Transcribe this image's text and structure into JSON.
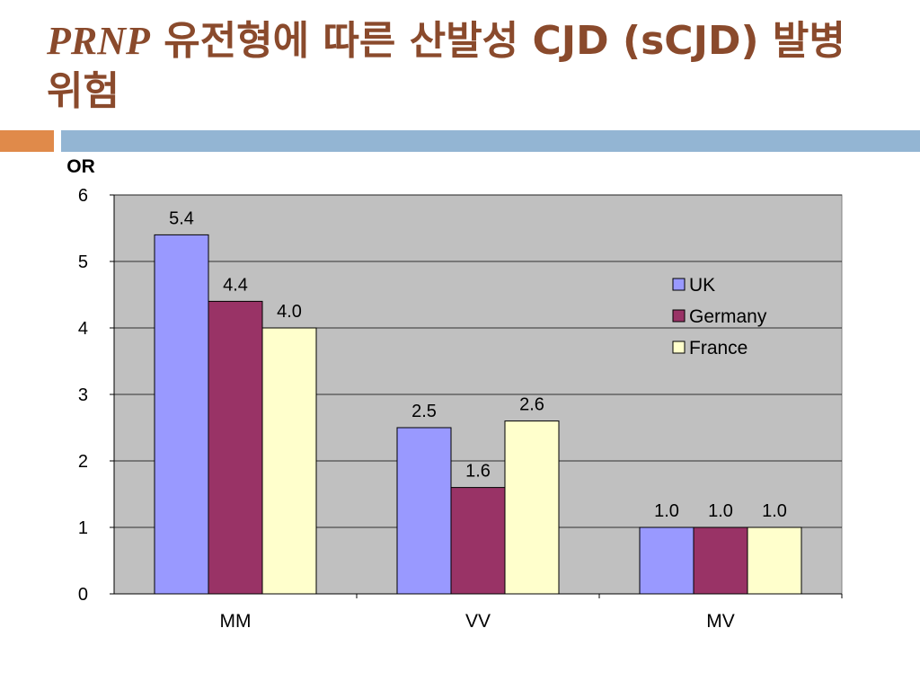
{
  "slide": {
    "title_italic": "PRNP",
    "title_rest": " 유전형에 따른 산발성 CJD (sCJD) 발병 위험"
  },
  "colors": {
    "accent_orange": "#e08a4a",
    "accent_blue": "#93b5d3",
    "plot_bg": "#c0c0c0"
  },
  "chart_data": {
    "type": "bar",
    "ylabel": "OR",
    "xlabel": "",
    "categories": [
      "MM",
      "VV",
      "MV"
    ],
    "series": [
      {
        "name": "UK",
        "values": [
          5.4,
          2.5,
          1.0
        ],
        "labels": [
          "5.4",
          "2.5",
          "1.0"
        ],
        "color": "#9999ff"
      },
      {
        "name": "Germany",
        "values": [
          4.4,
          1.6,
          1.0
        ],
        "labels": [
          "4.4",
          "1.6",
          "1.0"
        ],
        "color": "#993366"
      },
      {
        "name": "France",
        "values": [
          4.0,
          2.6,
          1.0
        ],
        "labels": [
          "4.0",
          "2.6",
          "1.0"
        ],
        "color": "#ffffcc"
      }
    ],
    "ylim": [
      0,
      6
    ],
    "yticks": [
      "0",
      "1",
      "2",
      "3",
      "4",
      "5",
      "6"
    ],
    "grid": true,
    "legend": "right"
  }
}
